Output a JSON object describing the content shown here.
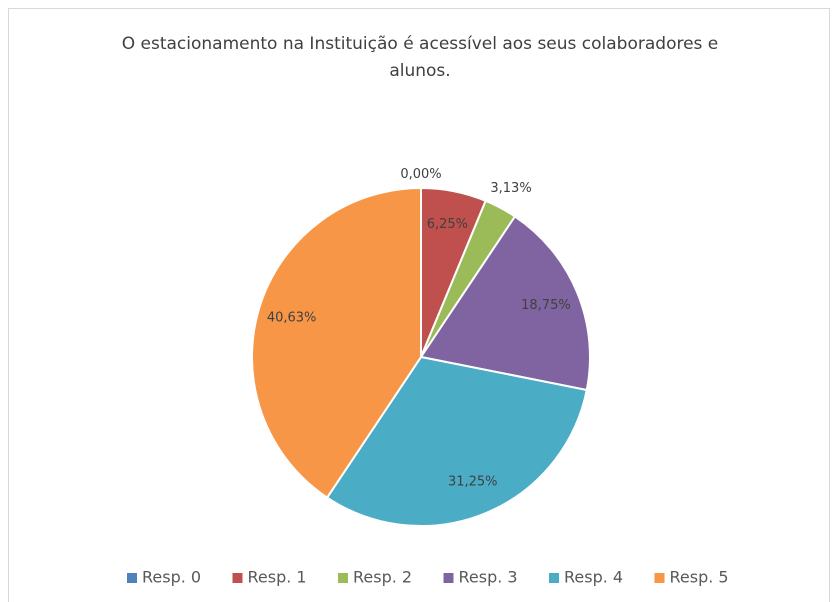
{
  "chart_data": {
    "type": "pie",
    "title": "O estacionamento na Instituição é acessível aos seus colaboradores e alunos.",
    "categories": [
      "Resp. 0",
      "Resp. 1",
      "Resp. 2",
      "Resp. 3",
      "Resp. 4",
      "Resp. 5"
    ],
    "values": [
      0,
      6.25,
      3.13,
      18.75,
      31.25,
      40.63
    ],
    "value_labels": [
      "0,00%",
      "6,25%",
      "3,13%",
      "18,75%",
      "31,25%",
      "40,63%"
    ],
    "colors": [
      "#4f81bd",
      "#c0504d",
      "#9bbb59",
      "#8064a2",
      "#4bacc6",
      "#f79646"
    ],
    "legend": "bottom"
  }
}
